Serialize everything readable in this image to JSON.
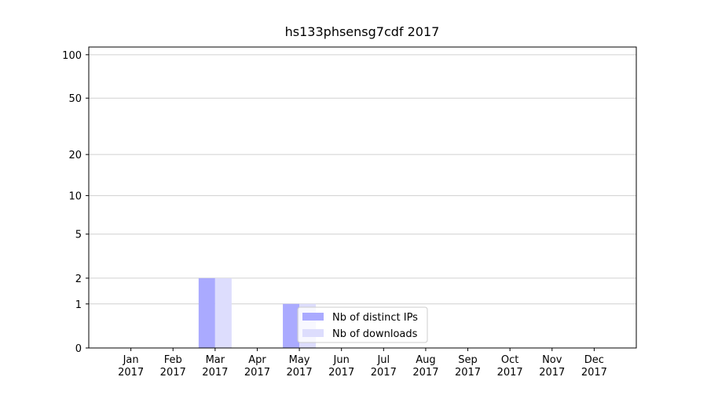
{
  "chart_data": {
    "type": "bar",
    "title": "hs133phsensg7cdf 2017",
    "categories": [
      "Jan\n2017",
      "Feb\n2017",
      "Mar\n2017",
      "Apr\n2017",
      "May\n2017",
      "Jun\n2017",
      "Jul\n2017",
      "Aug\n2017",
      "Sep\n2017",
      "Oct\n2017",
      "Nov\n2017",
      "Dec\n2017"
    ],
    "series": [
      {
        "name": "Nb of distinct IPs",
        "color": "#aaaaff",
        "values": [
          0,
          0,
          2,
          0,
          1,
          0,
          0,
          0,
          0,
          0,
          0,
          0
        ]
      },
      {
        "name": "Nb of downloads",
        "color": "#ddddfd",
        "values": [
          0,
          0,
          2,
          0,
          1,
          0,
          0,
          0,
          0,
          0,
          0,
          0
        ]
      }
    ],
    "yscale": "symlog",
    "ylim": [
      0,
      113
    ],
    "yticks": [
      0,
      1,
      2,
      5,
      10,
      20,
      50,
      100
    ],
    "grid": true,
    "legend": "lower center"
  }
}
